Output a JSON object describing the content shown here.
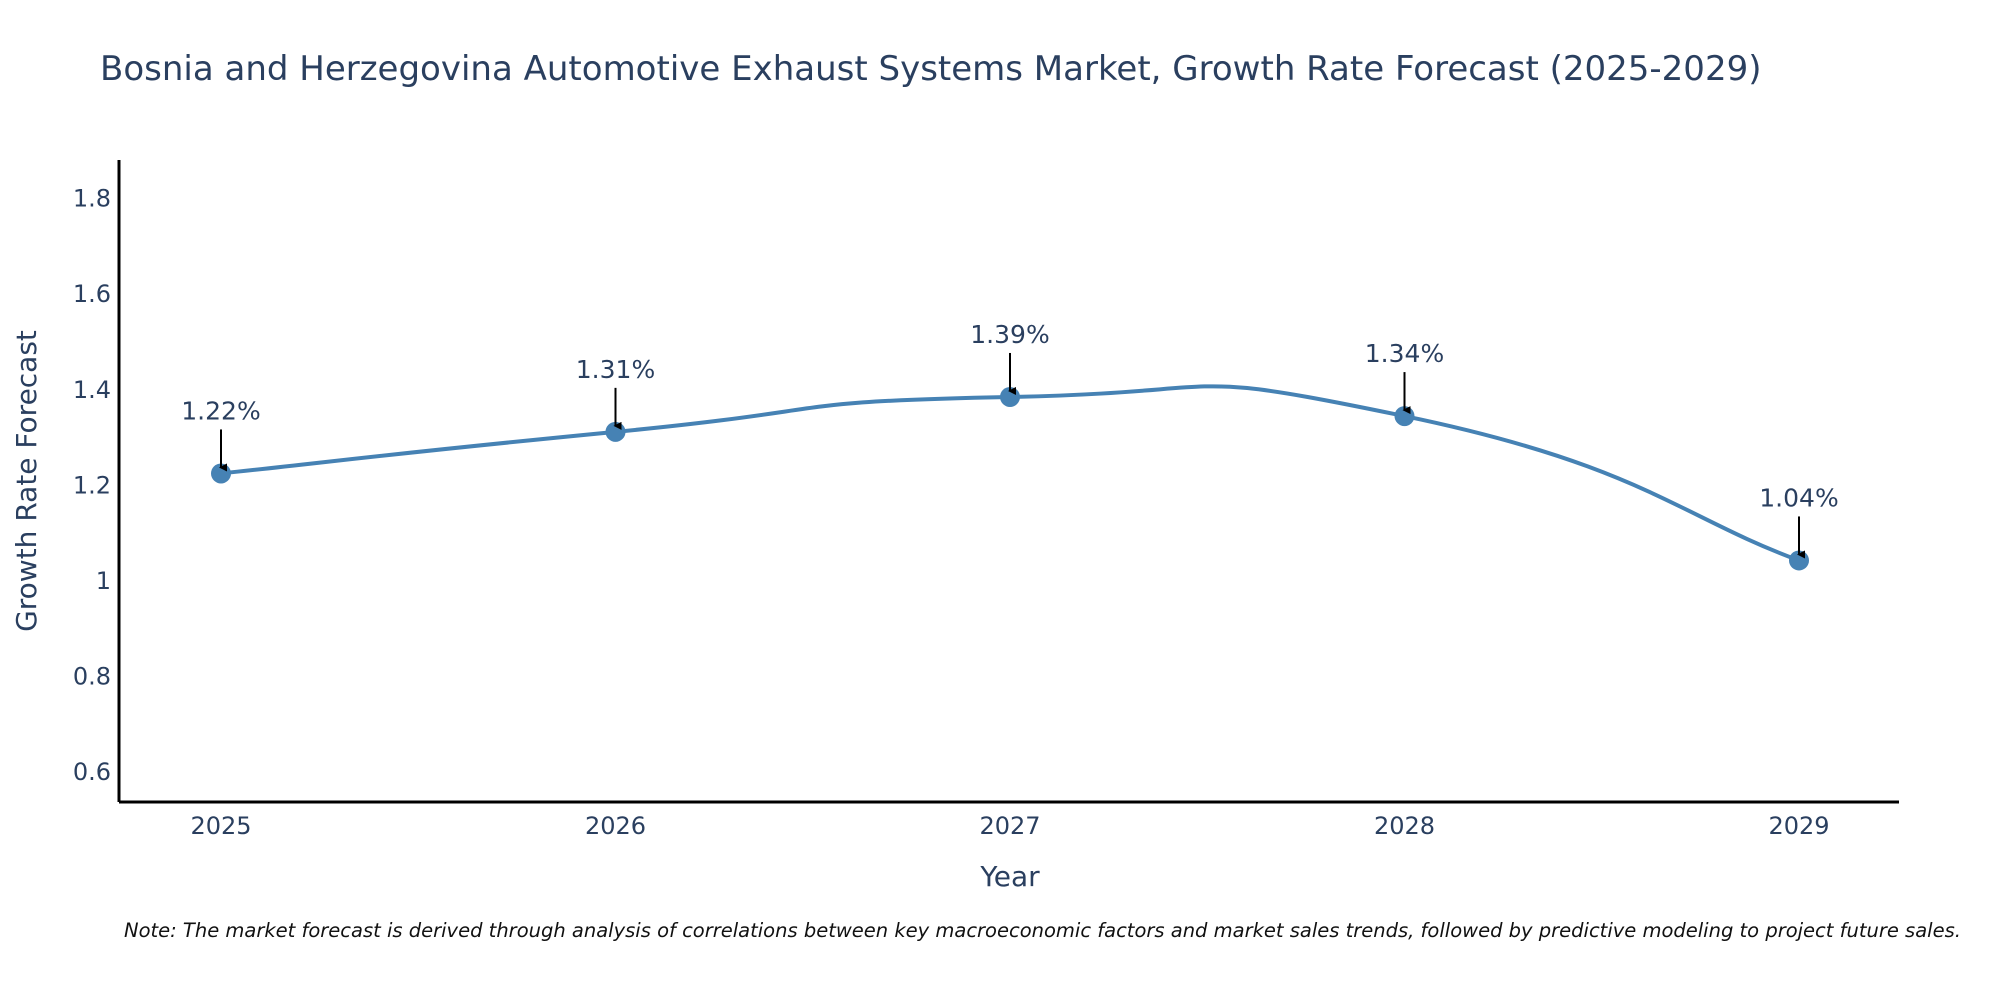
{
  "chart_data": {
    "type": "line",
    "title": "Bosnia and Herzegovina Automotive Exhaust Systems Market, Growth Rate Forecast (2025-2029)",
    "xlabel": "Year",
    "ylabel": "Growth Rate Forecast",
    "categories": [
      "2025",
      "2026",
      "2027",
      "2028",
      "2029"
    ],
    "values": [
      1.225,
      1.312,
      1.385,
      1.345,
      1.043
    ],
    "data_labels": [
      "1.22%",
      "1.31%",
      "1.39%",
      "1.34%",
      "1.04%"
    ],
    "yticks": [
      0.6,
      0.8,
      1,
      1.2,
      1.4,
      1.6,
      1.8
    ],
    "ytick_labels": [
      "0.6",
      "0.8",
      "1",
      "1.2",
      "1.4",
      "1.6",
      "1.8"
    ],
    "ylim": [
      0.54,
      1.88
    ],
    "grid": false,
    "line_color": "#4682b4",
    "line_shape": "spline"
  },
  "note": "Note: The market forecast is derived through analysis of correlations between key macroeconomic factors and market sales trends, followed by predictive modeling to project future sales."
}
